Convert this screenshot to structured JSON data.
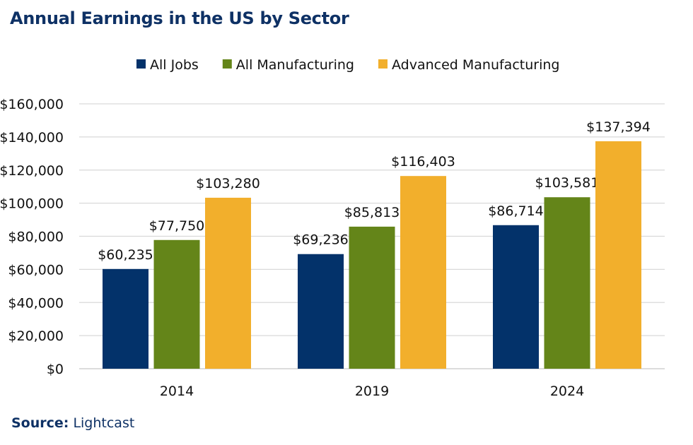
{
  "chart_data": {
    "type": "bar",
    "title": "Annual Earnings in the US by Sector",
    "categories": [
      "2014",
      "2019",
      "2024"
    ],
    "series": [
      {
        "name": "All Jobs",
        "color": "#03326a",
        "values": [
          60235,
          69236,
          86714
        ],
        "labels": [
          "$60,235",
          "$69,236",
          "$86,714"
        ]
      },
      {
        "name": "All Manufacturing",
        "color": "#648519",
        "values": [
          77750,
          85813,
          103581
        ],
        "labels": [
          "$77,750",
          "$85,813",
          "$103,581"
        ]
      },
      {
        "name": "Advanced Manufacturing",
        "color": "#f2af2c",
        "values": [
          103280,
          116403,
          137394
        ],
        "labels": [
          "$103,280",
          "$116,403",
          "$137,394"
        ]
      }
    ],
    "ylim": [
      0,
      160000
    ],
    "yticks": [
      "$0",
      "$20,000",
      "$40,000",
      "$60,000",
      "$80,000",
      "$100,000",
      "$120,000",
      "$140,000",
      "$160,000"
    ],
    "grid": true,
    "legend": "top-center",
    "xlabel": "",
    "ylabel": ""
  },
  "source": {
    "label": "Source:",
    "value": "Lightcast"
  }
}
